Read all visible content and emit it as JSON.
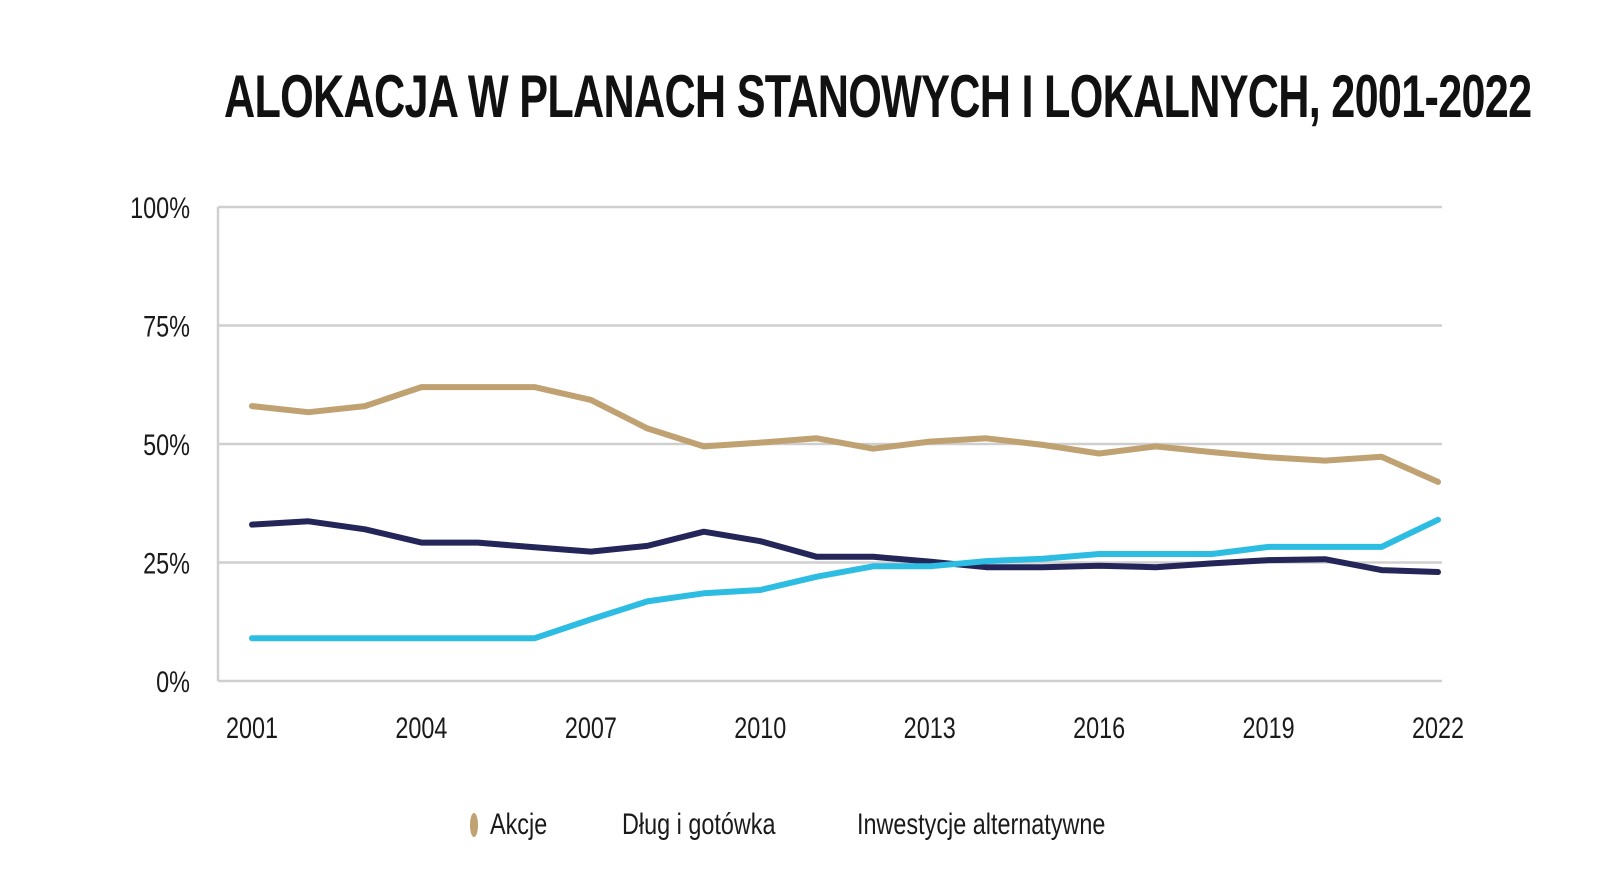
{
  "chart_data": {
    "type": "line",
    "title": "ALOKACJA W PLANACH STANOWYCH I LOKALNYCH, 2001-2022",
    "xlabel": "",
    "ylabel": "",
    "x": [
      2001,
      2002,
      2003,
      2004,
      2005,
      2006,
      2007,
      2008,
      2009,
      2010,
      2011,
      2012,
      2013,
      2014,
      2015,
      2016,
      2017,
      2018,
      2019,
      2020,
      2021,
      2022
    ],
    "xticks": [
      "2001",
      "2004",
      "2007",
      "2010",
      "2013",
      "2016",
      "2019",
      "2022"
    ],
    "yticks": [
      "0%",
      "25%",
      "50%",
      "75%",
      "100%"
    ],
    "ylim": [
      0,
      100
    ],
    "grid": "horizontal",
    "legend_position": "bottom-center",
    "series": [
      {
        "name": "Akcje",
        "color": "#BFA172",
        "values": [
          58,
          56.7,
          58,
          62,
          62,
          62,
          59.3,
          53.3,
          49.5,
          50.3,
          51.2,
          49,
          50.5,
          51.2,
          49.8,
          48,
          49.5,
          48.3,
          47.2,
          46.5,
          47.3,
          42
        ]
      },
      {
        "name": "Dług i gotówka",
        "color": "#242559",
        "values": [
          33,
          33.7,
          32,
          29.2,
          29.2,
          28.2,
          27.3,
          28.5,
          31.5,
          29.5,
          26.2,
          26.2,
          25.2,
          24,
          24,
          24.3,
          24,
          24.8,
          25.5,
          25.7,
          23.4,
          23
        ]
      },
      {
        "name": "Inwestycje alternatywne",
        "color": "#2DBDE3",
        "values": [
          9,
          9,
          9,
          9,
          9,
          9,
          13,
          16.8,
          18.5,
          19.2,
          22,
          24.2,
          24.2,
          25.3,
          25.8,
          26.8,
          26.8,
          26.8,
          28.3,
          28.3,
          28.3,
          34
        ]
      }
    ]
  }
}
